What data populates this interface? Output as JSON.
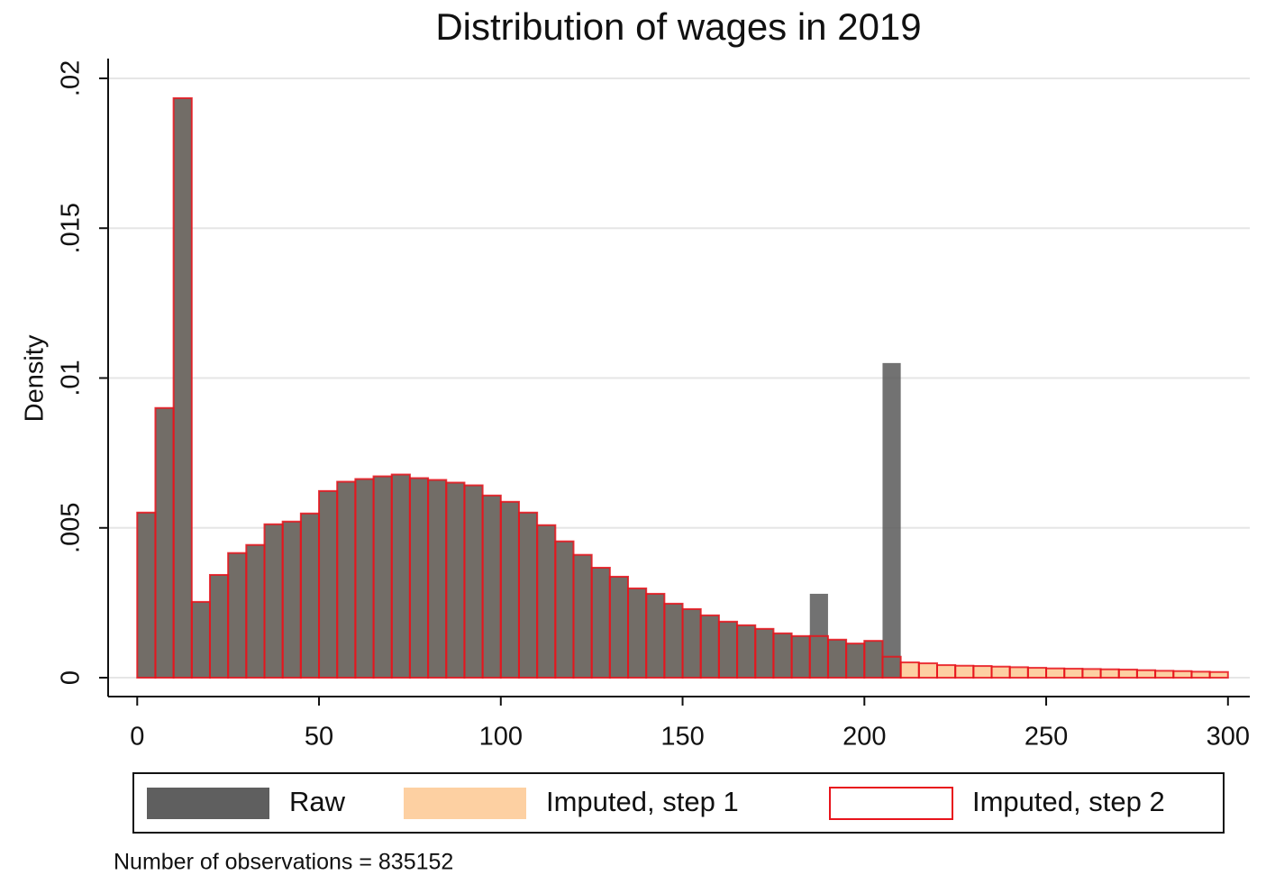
{
  "chart_data": {
    "type": "histogram",
    "title": "Distribution of wages in 2019",
    "ylabel": "Density",
    "note": "Number of observations = 835152",
    "bins": [
      0,
      5,
      10,
      15,
      20,
      25,
      30,
      35,
      40,
      45,
      50,
      55,
      60,
      65,
      70,
      75,
      80,
      85,
      90,
      95,
      100,
      105,
      110,
      115,
      120,
      125,
      130,
      135,
      140,
      145,
      150,
      155,
      160,
      165,
      170,
      175,
      180,
      185,
      190,
      195,
      200,
      205,
      210,
      215,
      220,
      225,
      230,
      235,
      240,
      245,
      250,
      255,
      260,
      265,
      270,
      275,
      280,
      285,
      290,
      295,
      300
    ],
    "series": [
      {
        "name": "Raw",
        "color": "#5f5f5f",
        "values": [
          0.00551,
          0.009,
          0.01934,
          0.00253,
          0.00343,
          0.00416,
          0.00443,
          0.00512,
          0.00521,
          0.00548,
          0.00623,
          0.00654,
          0.00663,
          0.00672,
          0.00678,
          0.00666,
          0.0066,
          0.00651,
          0.00642,
          0.00608,
          0.00587,
          0.00551,
          0.00509,
          0.00455,
          0.0041,
          0.00367,
          0.00337,
          0.00298,
          0.0028,
          0.00247,
          0.00229,
          0.00208,
          0.00187,
          0.00175,
          0.00163,
          0.00148,
          0.00139,
          0.0028,
          0.00127,
          0.00114,
          0.00123,
          0.0105,
          null,
          null,
          null,
          null,
          null,
          null,
          null,
          null,
          null,
          null,
          null,
          null,
          null,
          null,
          null,
          null,
          null,
          null
        ]
      },
      {
        "name": "Imputed, step 1",
        "color": "#fdd0a2",
        "values": [
          0.00551,
          0.009,
          0.01934,
          0.00253,
          0.00343,
          0.00416,
          0.00443,
          0.00512,
          0.00521,
          0.00548,
          0.00623,
          0.00654,
          0.00663,
          0.00672,
          0.00678,
          0.00666,
          0.0066,
          0.00651,
          0.00642,
          0.00608,
          0.00587,
          0.00551,
          0.00509,
          0.00455,
          0.0041,
          0.00367,
          0.00337,
          0.00298,
          0.0028,
          0.00247,
          0.00229,
          0.00208,
          0.00187,
          0.00175,
          0.00163,
          0.00148,
          0.00139,
          0.00139,
          0.00127,
          0.00114,
          0.00123,
          0.0007,
          0.00051,
          0.00048,
          0.00042,
          0.0004,
          0.00039,
          0.00037,
          0.00035,
          0.00033,
          0.00031,
          0.0003,
          0.00029,
          0.00028,
          0.00027,
          0.00025,
          0.00023,
          0.00022,
          0.0002,
          0.00019
        ]
      },
      {
        "name": "Imputed, step 2",
        "color": "#e8141c",
        "values": [
          0.00551,
          0.009,
          0.01934,
          0.00253,
          0.00343,
          0.00416,
          0.00443,
          0.00512,
          0.00521,
          0.00548,
          0.00623,
          0.00654,
          0.00663,
          0.00672,
          0.00678,
          0.00666,
          0.0066,
          0.00651,
          0.00642,
          0.00608,
          0.00587,
          0.00551,
          0.00509,
          0.00455,
          0.0041,
          0.00367,
          0.00337,
          0.00298,
          0.0028,
          0.00247,
          0.00229,
          0.00208,
          0.00187,
          0.00175,
          0.00163,
          0.00148,
          0.00139,
          0.00139,
          0.00127,
          0.00114,
          0.00123,
          0.0007,
          0.00051,
          0.00048,
          0.00042,
          0.0004,
          0.00039,
          0.00037,
          0.00035,
          0.00033,
          0.00031,
          0.0003,
          0.00029,
          0.00028,
          0.00027,
          0.00025,
          0.00023,
          0.00022,
          0.0002,
          0.00019
        ]
      }
    ],
    "xlim": [
      -8,
      306
    ],
    "xticks": [
      0,
      50,
      100,
      150,
      200,
      250,
      300
    ],
    "ylim": [
      -0.00063,
      0.02066
    ],
    "yticks": [
      0,
      {
        "value": 0.005,
        "label": ".005"
      },
      {
        "value": 0.01,
        "label": ".01"
      },
      {
        "value": 0.015,
        "label": ".015"
      },
      {
        "value": 0.02,
        "label": ".02"
      }
    ],
    "grid": true,
    "legend": "bottom"
  }
}
